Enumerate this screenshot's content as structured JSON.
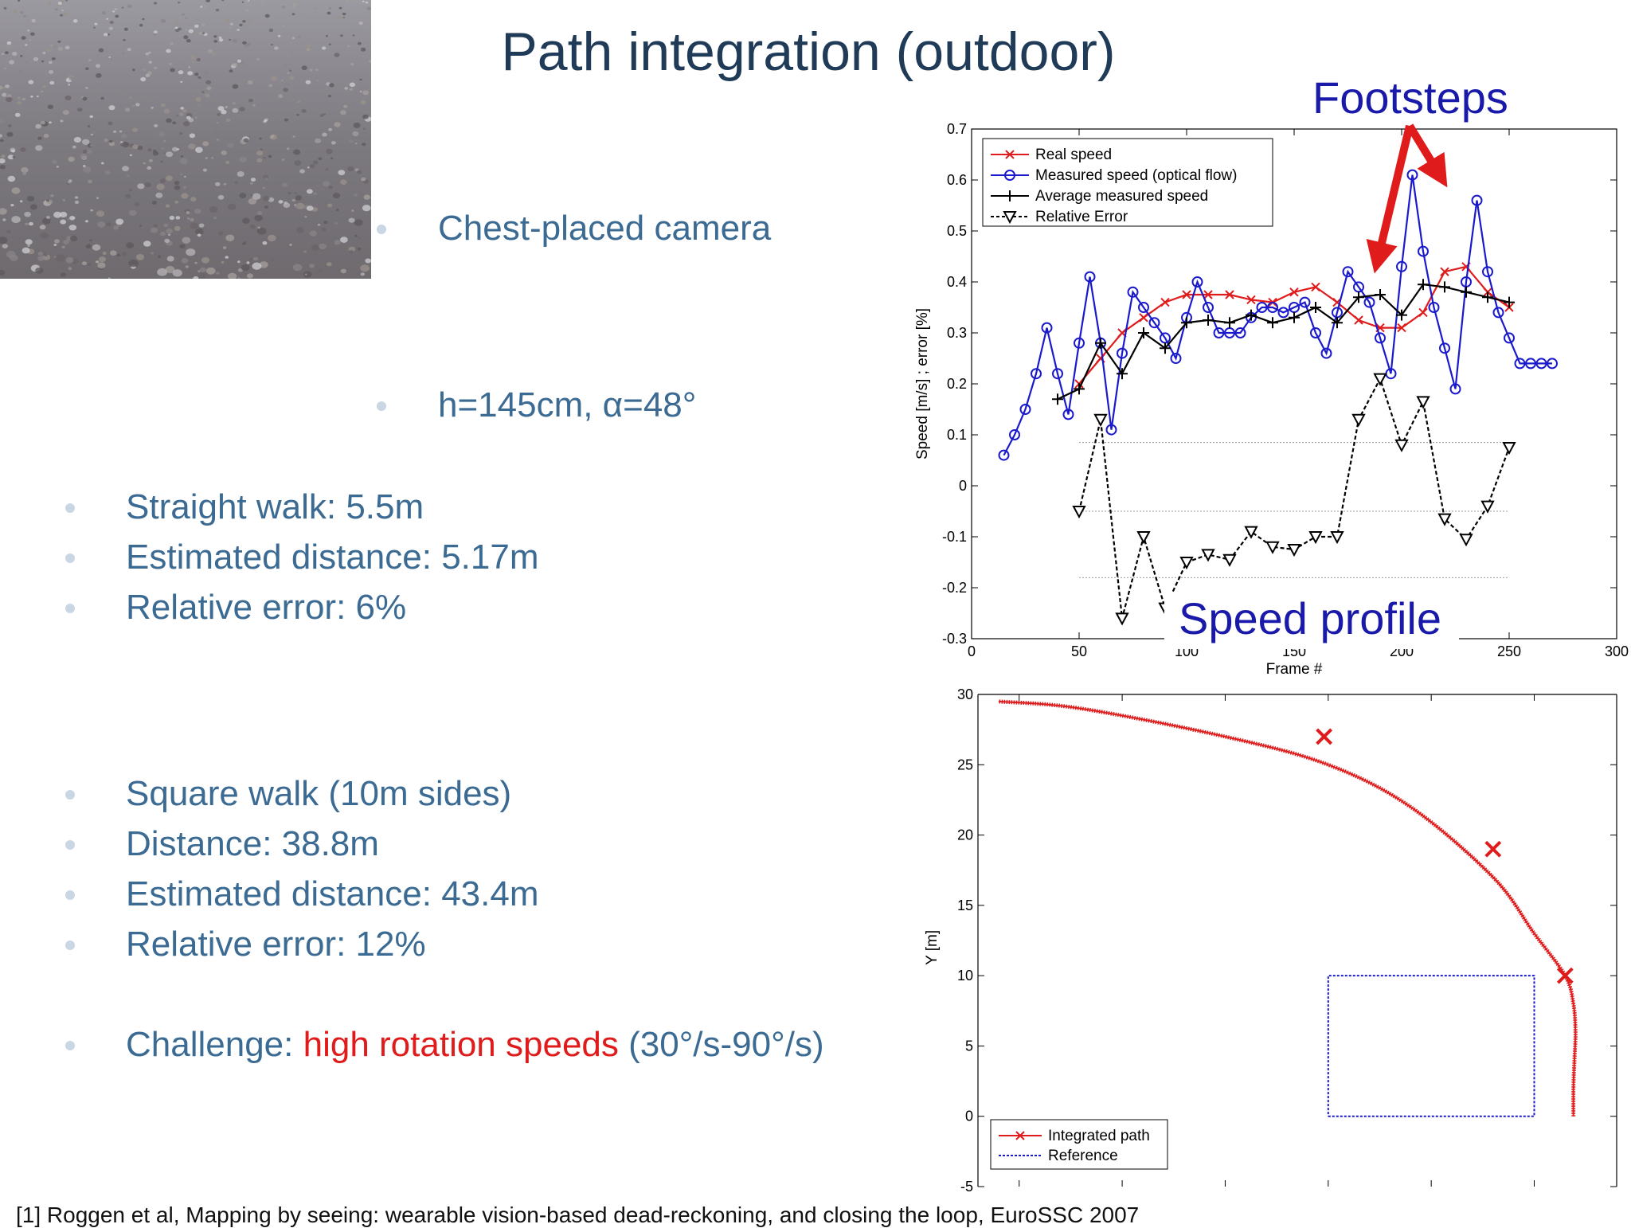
{
  "slide": {
    "title": "Path integration (outdoor)",
    "bullets_top": [
      "Chest-placed camera",
      "h=145cm, α=48°"
    ],
    "bullets_straight": [
      "Straight walk: 5.5m",
      "Estimated distance: 5.17m",
      "Relative error: 6%"
    ],
    "bullets_square": [
      "Square walk (10m sides)",
      "Distance: 38.8m",
      "Estimated distance: 43.4m",
      "Relative error: 12%"
    ],
    "challenge": {
      "prefix": "Challenge: ",
      "highlight": "high rotation speeds",
      "suffix": " (30°/s-90°/s)"
    },
    "annotations": {
      "footsteps": "Footsteps",
      "speed_profile": "Speed profile"
    },
    "reference": "[1] Roggen et al, Mapping by seeing: wearable vision-based dead-reckoning, and closing the loop, EuroSSC 2007",
    "colors": {
      "title": "#1f3b57",
      "bullet": "#3b6a93",
      "highlight": "#e01b1b",
      "annotation": "#1a1aaa"
    },
    "photo_icon": "gravel-ground-photo"
  },
  "chart_data": [
    {
      "type": "line",
      "xlabel": "Frame #",
      "ylabel": "Speed [m/s] ; error [%]",
      "xlim": [
        0,
        300
      ],
      "ylim": [
        -0.3,
        0.7
      ],
      "xticks": [
        "0",
        "50",
        "100",
        "150",
        "200",
        "250",
        "300"
      ],
      "yticks": [
        "-0.3",
        "-0.2",
        "-0.1",
        "0",
        "0.1",
        "0.2",
        "0.3",
        "0.4",
        "0.5",
        "0.6",
        "0.7"
      ],
      "legend_position": "top-left",
      "series": [
        {
          "name": "Real speed",
          "color": "#e01b1b",
          "marker": "x",
          "x": [
            50,
            60,
            70,
            80,
            90,
            100,
            110,
            120,
            130,
            140,
            150,
            160,
            170,
            180,
            190,
            200,
            210,
            220,
            230,
            240,
            250
          ],
          "y": [
            0.2,
            0.25,
            0.3,
            0.33,
            0.36,
            0.375,
            0.375,
            0.375,
            0.365,
            0.36,
            0.38,
            0.39,
            0.36,
            0.325,
            0.31,
            0.31,
            0.34,
            0.42,
            0.43,
            0.38,
            0.35
          ]
        },
        {
          "name": "Measured speed (optical flow)",
          "color": "#1a1acc",
          "marker": "o",
          "x": [
            15,
            20,
            25,
            30,
            35,
            40,
            45,
            50,
            55,
            60,
            65,
            70,
            75,
            80,
            85,
            90,
            95,
            100,
            105,
            110,
            115,
            120,
            125,
            130,
            135,
            140,
            145,
            150,
            155,
            160,
            165,
            170,
            175,
            180,
            185,
            190,
            195,
            200,
            205,
            210,
            215,
            220,
            225,
            230,
            235,
            240,
            245,
            250,
            255,
            260,
            265,
            270
          ],
          "y": [
            0.06,
            0.1,
            0.15,
            0.22,
            0.31,
            0.22,
            0.14,
            0.28,
            0.41,
            0.28,
            0.11,
            0.26,
            0.38,
            0.35,
            0.32,
            0.29,
            0.25,
            0.33,
            0.4,
            0.35,
            0.3,
            0.3,
            0.3,
            0.33,
            0.35,
            0.35,
            0.34,
            0.35,
            0.36,
            0.3,
            0.26,
            0.34,
            0.42,
            0.39,
            0.36,
            0.29,
            0.22,
            0.43,
            0.61,
            0.46,
            0.35,
            0.27,
            0.19,
            0.4,
            0.56,
            0.42,
            0.34,
            0.29,
            0.24,
            0.24,
            0.24,
            0.24
          ]
        },
        {
          "name": "Average measured speed",
          "color": "#000000",
          "marker": "+",
          "x": [
            40,
            50,
            60,
            70,
            80,
            90,
            100,
            110,
            120,
            130,
            140,
            150,
            160,
            170,
            180,
            190,
            200,
            210,
            220,
            230,
            240,
            250
          ],
          "y": [
            0.17,
            0.19,
            0.28,
            0.22,
            0.3,
            0.27,
            0.32,
            0.325,
            0.32,
            0.335,
            0.32,
            0.33,
            0.35,
            0.32,
            0.37,
            0.375,
            0.335,
            0.395,
            0.39,
            0.38,
            0.37,
            0.36
          ]
        },
        {
          "name": "Relative Error",
          "color": "#000000",
          "marker": "v",
          "dashed": true,
          "x": [
            50,
            60,
            70,
            80,
            90,
            100,
            110,
            120,
            130,
            140,
            150,
            160,
            170,
            180,
            190,
            200,
            210,
            220,
            230,
            240,
            250
          ],
          "y": [
            -0.05,
            0.13,
            -0.26,
            -0.1,
            -0.24,
            -0.15,
            -0.135,
            -0.145,
            -0.09,
            -0.12,
            -0.125,
            -0.1,
            -0.1,
            0.13,
            0.21,
            0.08,
            0.165,
            -0.065,
            -0.105,
            -0.04,
            0.075
          ]
        }
      ],
      "reference_lines": [
        0.085,
        -0.05,
        -0.18
      ]
    },
    {
      "type": "line",
      "ylabel": "Y [m]",
      "ylim": [
        -5,
        30
      ],
      "yticks": [
        "-5",
        "0",
        "5",
        "10",
        "15",
        "20",
        "25",
        "30"
      ],
      "legend_position": "bottom-left",
      "series": [
        {
          "name": "Integrated path",
          "color": "#e01b1b",
          "marker": "x",
          "x": [
            11.9,
            11.9,
            11.95,
            12.0,
            11.9,
            11.5,
            10.0,
            8.0,
            4.0,
            0.0,
            -5.0,
            -12.0,
            -16.0
          ],
          "y": [
            0,
            2,
            4,
            6,
            8,
            10,
            13,
            17,
            22,
            25,
            27,
            29,
            29.5
          ],
          "step_marks_x": [
            11.5,
            8.0,
            -0.2
          ],
          "step_marks_y": [
            10.0,
            19.0,
            27.0
          ]
        },
        {
          "name": "Reference",
          "color": "#1a1acc",
          "dashed": true,
          "x": [
            0,
            10,
            10,
            0,
            0
          ],
          "y": [
            0,
            0,
            10,
            10,
            0
          ]
        }
      ]
    }
  ]
}
